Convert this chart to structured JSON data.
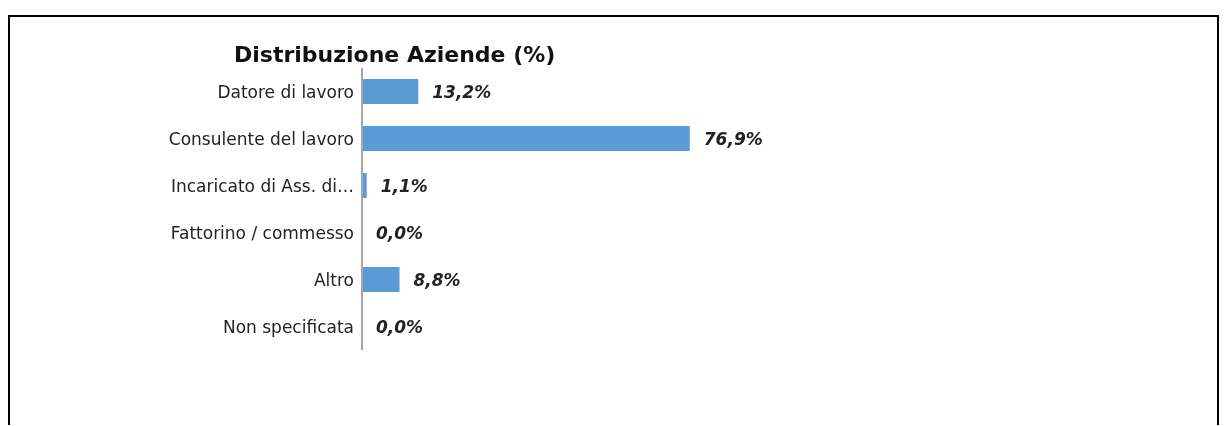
{
  "chart_data": {
    "type": "bar",
    "orientation": "horizontal",
    "title": "Distribuzione Aziende (%)",
    "categories": [
      "Datore di lavoro",
      "Consulente del lavoro",
      "Incaricato di Ass. di…",
      "Fattorino / commesso",
      "Altro",
      "Non specificata"
    ],
    "values": [
      13.2,
      76.9,
      1.1,
      0.0,
      8.8,
      0.0
    ],
    "value_labels": [
      "13,2%",
      "76,9%",
      "1,1%",
      "0,0%",
      "8,8%",
      "0,0%"
    ],
    "color": "#5b9bd5",
    "tick_labels": "y"
  }
}
